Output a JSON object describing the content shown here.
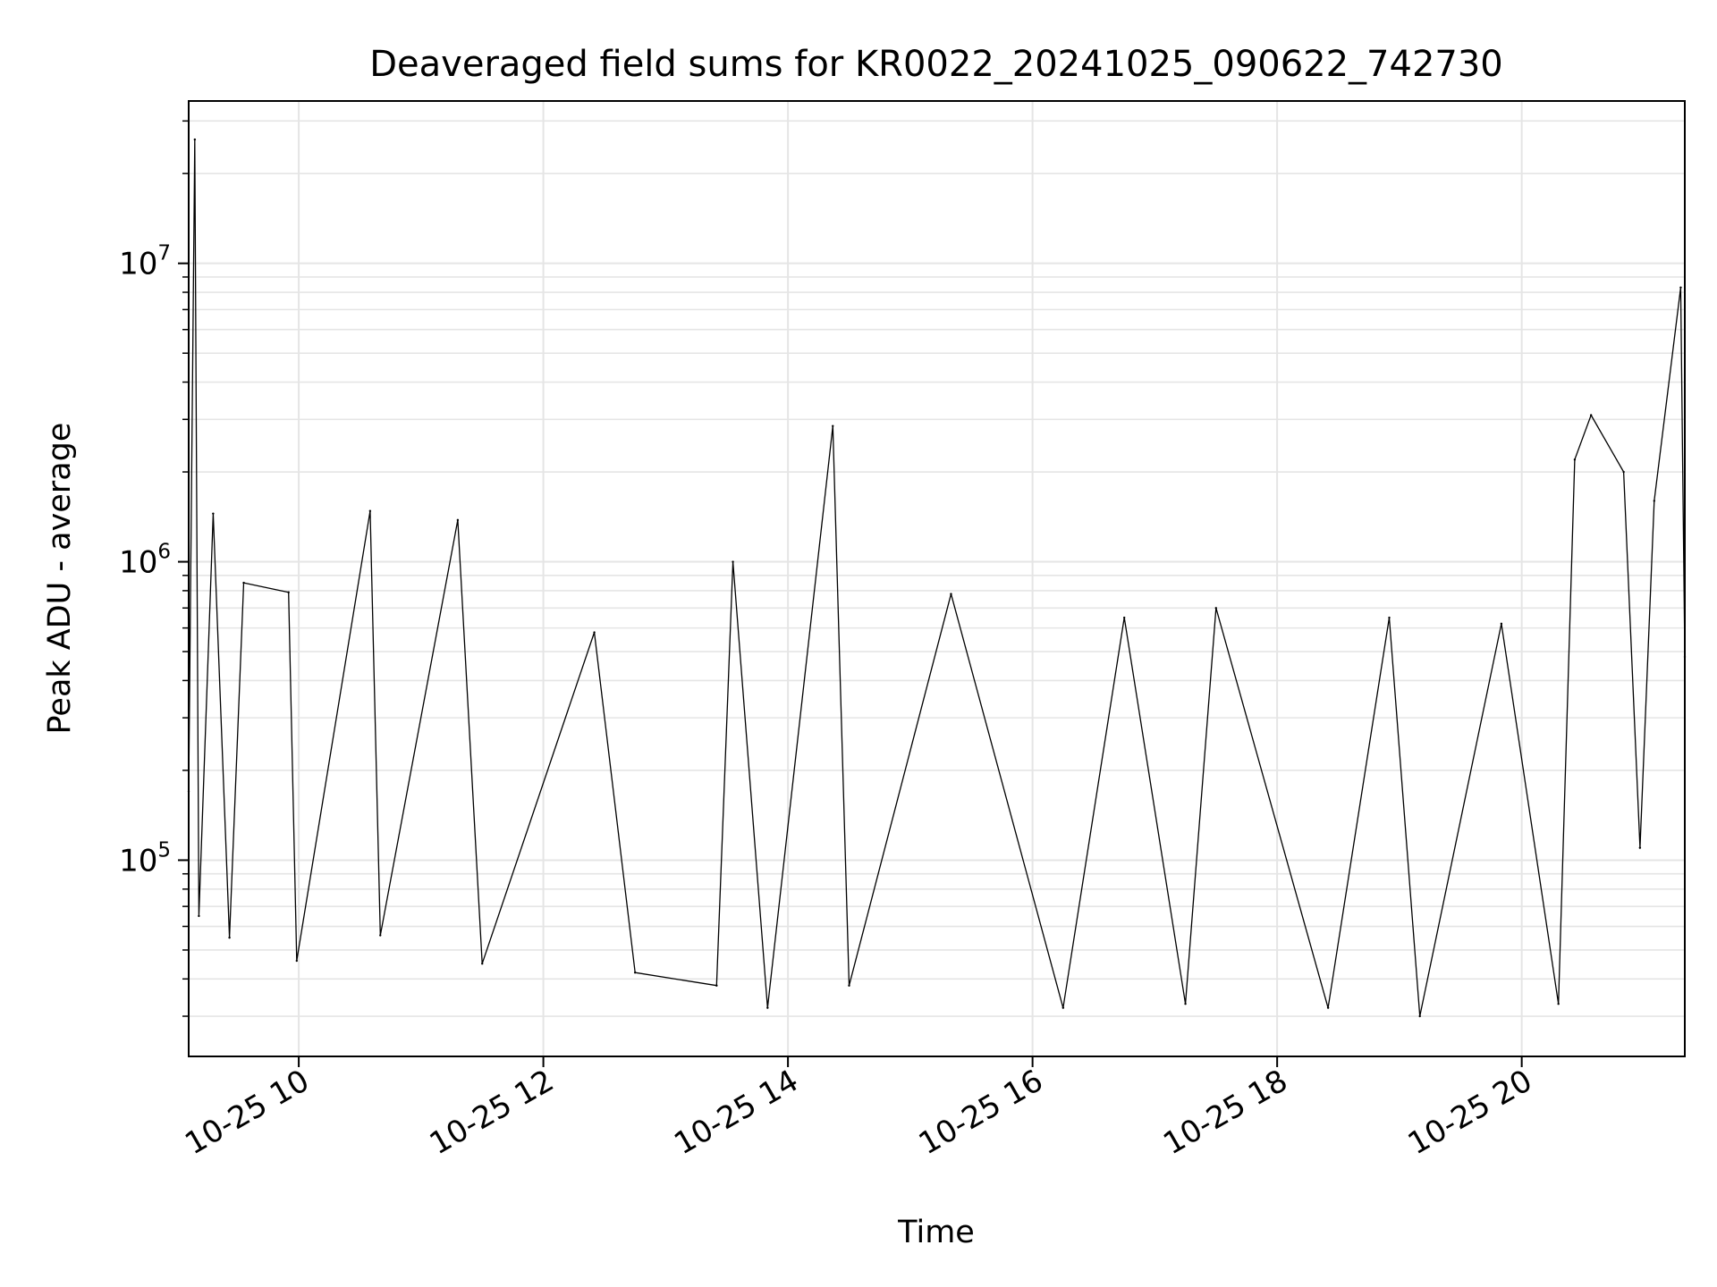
{
  "chart_data": {
    "type": "line",
    "title": "Deaveraged field sums for KR0022_20241025_090622_742730",
    "xlabel": "Time",
    "ylabel": "Peak ADU - average",
    "y_scale": "log",
    "grid": true,
    "line_color": "#000000",
    "grid_color": "#e5e5e5",
    "xlim": [
      "2024-10-25T09:06",
      "2024-10-25T21:20"
    ],
    "ylim": [
      22000,
      35000000
    ],
    "x_ticks": [
      {
        "value": "2024-10-25T10:00",
        "label": "10-25 10"
      },
      {
        "value": "2024-10-25T12:00",
        "label": "10-25 12"
      },
      {
        "value": "2024-10-25T14:00",
        "label": "10-25 14"
      },
      {
        "value": "2024-10-25T16:00",
        "label": "10-25 16"
      },
      {
        "value": "2024-10-25T18:00",
        "label": "10-25 18"
      },
      {
        "value": "2024-10-25T20:00",
        "label": "10-25 20"
      }
    ],
    "y_ticks": [
      {
        "value": 100000,
        "base": "10",
        "exp": "5"
      },
      {
        "value": 1000000,
        "base": "10",
        "exp": "6"
      },
      {
        "value": 10000000,
        "base": "10",
        "exp": "7"
      }
    ],
    "series": [
      {
        "points": [
          [
            "2024-10-25T09:06",
            170000
          ],
          [
            "2024-10-25T09:09",
            26000000
          ],
          [
            "2024-10-25T09:11",
            65000
          ],
          [
            "2024-10-25T09:18",
            1450000
          ],
          [
            "2024-10-25T09:26",
            55000
          ],
          [
            "2024-10-25T09:33",
            850000
          ],
          [
            "2024-10-25T09:55",
            790000
          ],
          [
            "2024-10-25T09:59",
            46000
          ],
          [
            "2024-10-25T10:35",
            1480000
          ],
          [
            "2024-10-25T10:40",
            56000
          ],
          [
            "2024-10-25T11:18",
            1380000
          ],
          [
            "2024-10-25T11:30",
            45000
          ],
          [
            "2024-10-25T12:25",
            580000
          ],
          [
            "2024-10-25T12:45",
            42000
          ],
          [
            "2024-10-25T13:25",
            38000
          ],
          [
            "2024-10-25T13:33",
            1000000
          ],
          [
            "2024-10-25T13:50",
            32000
          ],
          [
            "2024-10-25T14:22",
            2850000
          ],
          [
            "2024-10-25T14:30",
            38000
          ],
          [
            "2024-10-25T15:20",
            780000
          ],
          [
            "2024-10-25T16:15",
            32000
          ],
          [
            "2024-10-25T16:45",
            650000
          ],
          [
            "2024-10-25T17:15",
            33000
          ],
          [
            "2024-10-25T17:30",
            700000
          ],
          [
            "2024-10-25T18:25",
            32000
          ],
          [
            "2024-10-25T18:55",
            650000
          ],
          [
            "2024-10-25T19:10",
            30000
          ],
          [
            "2024-10-25T19:50",
            620000
          ],
          [
            "2024-10-25T20:18",
            33000
          ],
          [
            "2024-10-25T20:26",
            2200000
          ],
          [
            "2024-10-25T20:34",
            3100000
          ],
          [
            "2024-10-25T20:50",
            2000000
          ],
          [
            "2024-10-25T20:58",
            110000
          ],
          [
            "2024-10-25T21:05",
            1600000
          ],
          [
            "2024-10-25T21:18",
            8300000
          ],
          [
            "2024-10-25T21:20",
            480000
          ]
        ]
      }
    ]
  }
}
